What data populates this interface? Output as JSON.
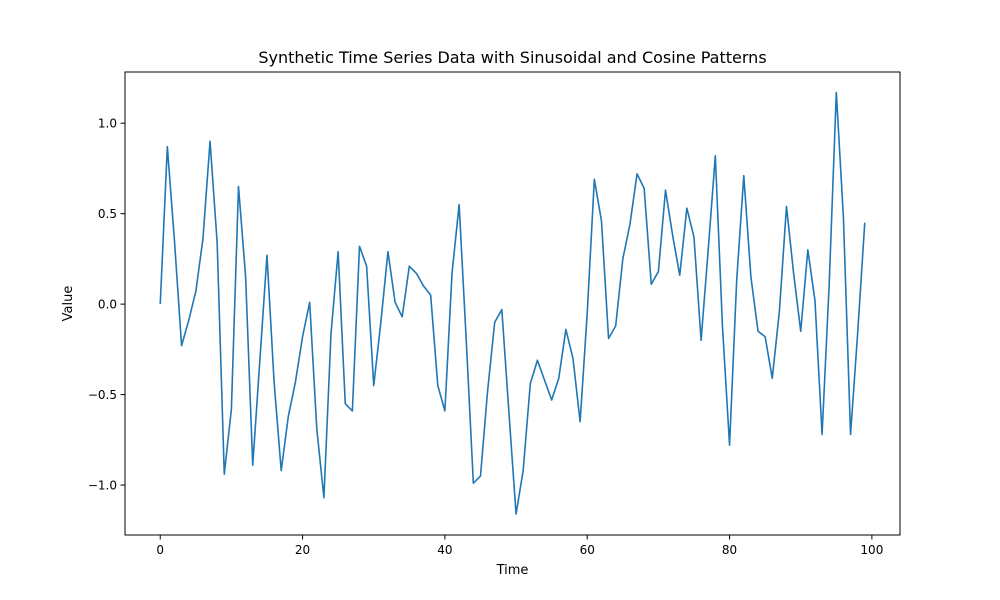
{
  "chart_data": {
    "type": "line",
    "title": "Synthetic Time Series Data with Sinusoidal and Cosine Patterns",
    "xlabel": "Time",
    "ylabel": "Value",
    "xlim": [
      -4.95,
      103.95
    ],
    "ylim": [
      -1.276,
      1.283
    ],
    "xticks": [
      0,
      20,
      40,
      60,
      80,
      100
    ],
    "yticks": [
      -1.0,
      -0.5,
      0.0,
      0.5,
      1.0
    ],
    "xtick_labels": [
      "0",
      "20",
      "40",
      "60",
      "80",
      "100"
    ],
    "ytick_labels": [
      "−1.0",
      "−0.5",
      "0.0",
      "0.5",
      "1.0"
    ],
    "grid": false,
    "series": [
      {
        "color": "#1f77b4",
        "x": [
          0,
          1,
          2,
          3,
          4,
          5,
          6,
          7,
          8,
          9,
          10,
          11,
          12,
          13,
          14,
          15,
          16,
          17,
          18,
          19,
          20,
          21,
          22,
          23,
          24,
          25,
          26,
          27,
          28,
          29,
          30,
          31,
          32,
          33,
          34,
          35,
          36,
          37,
          38,
          39,
          40,
          41,
          42,
          43,
          44,
          45,
          46,
          47,
          48,
          49,
          50,
          51,
          52,
          53,
          54,
          55,
          56,
          57,
          58,
          59,
          60,
          61,
          62,
          63,
          64,
          65,
          66,
          67,
          68,
          69,
          70,
          71,
          72,
          73,
          74,
          75,
          76,
          77,
          78,
          79,
          80,
          81,
          82,
          83,
          84,
          85,
          86,
          87,
          88,
          89,
          90,
          91,
          92,
          93,
          94,
          95,
          96,
          97,
          98,
          99
        ],
        "y": [
          0.0,
          0.87,
          0.35,
          -0.23,
          -0.09,
          0.07,
          0.36,
          0.9,
          0.34,
          -0.94,
          -0.58,
          0.65,
          0.15,
          -0.89,
          -0.31,
          0.27,
          -0.43,
          -0.92,
          -0.62,
          -0.43,
          -0.18,
          0.01,
          -0.69,
          -1.07,
          -0.16,
          0.29,
          -0.55,
          -0.59,
          0.32,
          0.21,
          -0.45,
          -0.1,
          0.29,
          0.01,
          -0.07,
          0.21,
          0.17,
          0.1,
          0.05,
          -0.45,
          -0.59,
          0.17,
          0.55,
          -0.2,
          -0.99,
          -0.95,
          -0.48,
          -0.1,
          -0.03,
          -0.6,
          -1.16,
          -0.92,
          -0.44,
          -0.31,
          -0.42,
          -0.53,
          -0.41,
          -0.14,
          -0.3,
          -0.65,
          -0.05,
          0.69,
          0.46,
          -0.19,
          -0.12,
          0.25,
          0.44,
          0.72,
          0.64,
          0.11,
          0.18,
          0.63,
          0.38,
          0.16,
          0.53,
          0.37,
          -0.2,
          0.3,
          0.82,
          -0.12,
          -0.78,
          0.13,
          0.71,
          0.15,
          -0.15,
          -0.18,
          -0.41,
          -0.04,
          0.54,
          0.17,
          -0.15,
          0.3,
          0.02,
          -0.72,
          0.11,
          1.17,
          0.48,
          -0.72,
          -0.16,
          0.45
        ]
      }
    ]
  }
}
